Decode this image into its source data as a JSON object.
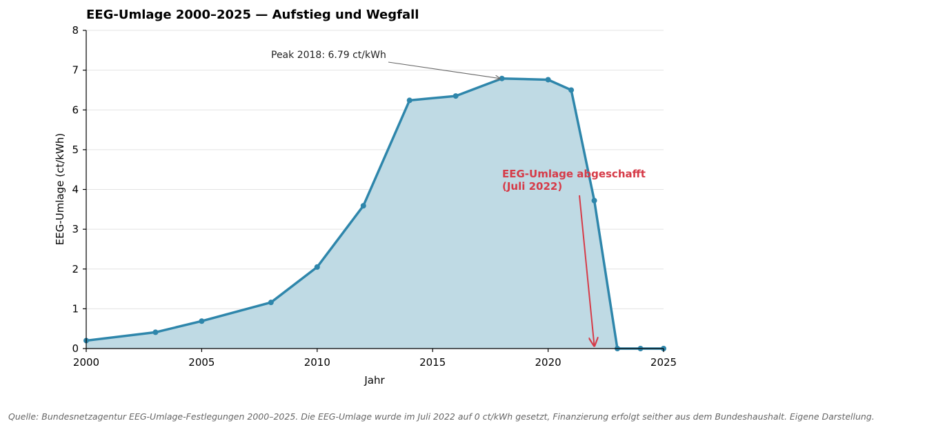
{
  "chart_data": {
    "type": "area",
    "title": "EEG-Umlage 2000–2025 — Aufstieg und Wegfall",
    "xlabel": "Jahr",
    "ylabel": "EEG-Umlage (ct/kWh)",
    "xlim": [
      2000,
      2025
    ],
    "ylim": [
      0,
      8
    ],
    "x_ticks": [
      2000,
      2005,
      2010,
      2015,
      2020,
      2025
    ],
    "y_ticks": [
      0,
      1,
      2,
      3,
      4,
      5,
      6,
      7,
      8
    ],
    "grid": "horizontal",
    "series": [
      {
        "x": [
          2000,
          2003,
          2005,
          2008,
          2010,
          2012,
          2014,
          2016,
          2018,
          2020,
          2021,
          2022,
          2023,
          2024,
          2025
        ],
        "y": [
          0.2,
          0.41,
          0.69,
          1.16,
          2.05,
          3.59,
          6.24,
          6.35,
          6.79,
          6.76,
          6.5,
          3.72,
          0.0,
          0.0,
          0.0
        ]
      }
    ],
    "colors": {
      "line": "#2e86ab",
      "fill": "#bfdae4",
      "annotation": "#d63b48",
      "peak_arrow": "#666666"
    },
    "annotations": {
      "peak": {
        "text": "Peak 2018: 6.79 ct/kWh",
        "x": 2018,
        "y": 6.79
      },
      "abolition": {
        "line1": "EEG-Umlage abgeschafft",
        "line2": "(Juli 2022)",
        "x": 2022,
        "y": 0.0
      }
    }
  },
  "source_note": "Quelle: Bundesnetzagentur EEG-Umlage-Festlegungen 2000–2025. Die EEG-Umlage wurde im Juli 2022 auf 0 ct/kWh gesetzt, Finanzierung erfolgt seither aus dem Bundeshaushalt. Eigene Darstellung."
}
